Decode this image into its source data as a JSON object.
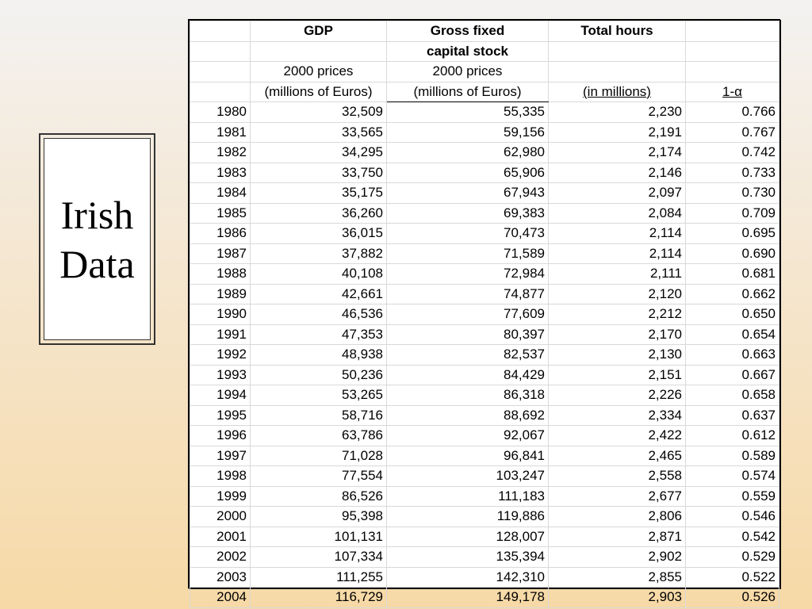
{
  "title": {
    "line1": "Irish",
    "line2": "Data"
  },
  "table": {
    "header": {
      "row1": [
        "",
        "GDP",
        "Gross fixed",
        "Total hours",
        ""
      ],
      "row2": [
        "",
        "",
        "capital stock",
        "",
        ""
      ],
      "row3": [
        "",
        "2000 prices",
        "2000 prices",
        "",
        ""
      ],
      "row4": [
        "",
        "(millions of Euros)",
        "(millions of Euros)",
        "(in millions)",
        "1-α"
      ]
    },
    "rows": [
      [
        "1980",
        "32,509",
        "55,335",
        "2,230",
        "0.766"
      ],
      [
        "1981",
        "33,565",
        "59,156",
        "2,191",
        "0.767"
      ],
      [
        "1982",
        "34,295",
        "62,980",
        "2,174",
        "0.742"
      ],
      [
        "1983",
        "33,750",
        "65,906",
        "2,146",
        "0.733"
      ],
      [
        "1984",
        "35,175",
        "67,943",
        "2,097",
        "0.730"
      ],
      [
        "1985",
        "36,260",
        "69,383",
        "2,084",
        "0.709"
      ],
      [
        "1986",
        "36,015",
        "70,473",
        "2,114",
        "0.695"
      ],
      [
        "1987",
        "37,882",
        "71,589",
        "2,114",
        "0.690"
      ],
      [
        "1988",
        "40,108",
        "72,984",
        "2,111",
        "0.681"
      ],
      [
        "1989",
        "42,661",
        "74,877",
        "2,120",
        "0.662"
      ],
      [
        "1990",
        "46,536",
        "77,609",
        "2,212",
        "0.650"
      ],
      [
        "1991",
        "47,353",
        "80,397",
        "2,170",
        "0.654"
      ],
      [
        "1992",
        "48,938",
        "82,537",
        "2,130",
        "0.663"
      ],
      [
        "1993",
        "50,236",
        "84,429",
        "2,151",
        "0.667"
      ],
      [
        "1994",
        "53,265",
        "86,318",
        "2,226",
        "0.658"
      ],
      [
        "1995",
        "58,716",
        "88,692",
        "2,334",
        "0.637"
      ],
      [
        "1996",
        "63,786",
        "92,067",
        "2,422",
        "0.612"
      ],
      [
        "1997",
        "71,028",
        "96,841",
        "2,465",
        "0.589"
      ],
      [
        "1998",
        "77,554",
        "103,247",
        "2,558",
        "0.574"
      ],
      [
        "1999",
        "86,526",
        "111,183",
        "2,677",
        "0.559"
      ],
      [
        "2000",
        "95,398",
        "119,886",
        "2,806",
        "0.546"
      ],
      [
        "2001",
        "101,131",
        "128,007",
        "2,871",
        "0.542"
      ],
      [
        "2002",
        "107,334",
        "135,394",
        "2,902",
        "0.529"
      ],
      [
        "2003",
        "111,255",
        "142,310",
        "2,855",
        "0.522"
      ],
      [
        "2004",
        "116,729",
        "149,178",
        "2,903",
        "0.526"
      ]
    ]
  }
}
